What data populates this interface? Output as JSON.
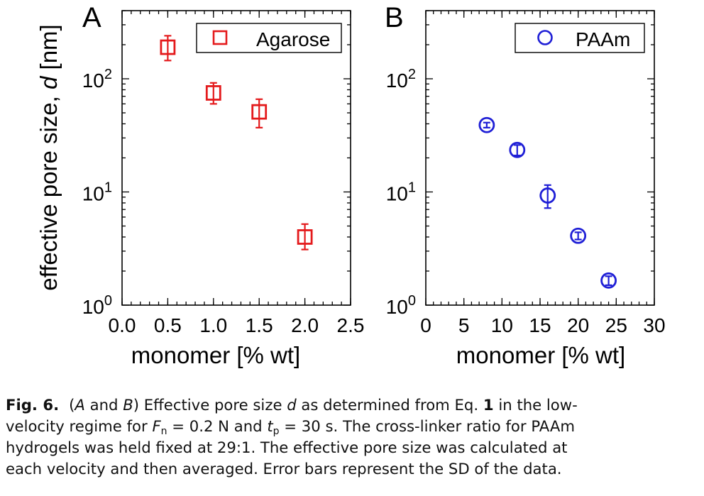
{
  "figure": {
    "y_axis_label": "effective pore size, d [nm]",
    "y_axis_label_prefix": "effective pore size, ",
    "y_axis_label_var": "d",
    "y_axis_label_unit": " [nm]"
  },
  "chart_data": [
    {
      "type": "scatter",
      "panel_label": "A",
      "xlabel": "monomer [% wt]",
      "ylabel": "effective pore size, d [nm]",
      "y_scale": "log",
      "xlim": [
        0,
        2.5
      ],
      "ylim": [
        1,
        400
      ],
      "x_ticks": [
        "0.0",
        "0.5",
        "1.0",
        "1.5",
        "2.0",
        "2.5"
      ],
      "x_tick_values": [
        0,
        0.5,
        1.0,
        1.5,
        2.0,
        2.5
      ],
      "y_tick_values": [
        1,
        10,
        100
      ],
      "y_ticks": [
        {
          "base": "10",
          "exp": "0"
        },
        {
          "base": "10",
          "exp": "1"
        },
        {
          "base": "10",
          "exp": "2"
        }
      ],
      "legend_position": "top-right",
      "color": "#e41a1c",
      "series": [
        {
          "name": "Agarose",
          "marker": "square",
          "x": [
            0.5,
            1.0,
            1.5,
            2.0
          ],
          "y": [
            190,
            75,
            51,
            4.0
          ],
          "y_err_low": [
            145,
            60,
            37,
            3.1
          ],
          "y_err_high": [
            240,
            92,
            66,
            5.2
          ]
        }
      ]
    },
    {
      "type": "scatter",
      "panel_label": "B",
      "xlabel": "monomer [% wt]",
      "y_scale": "log",
      "xlim": [
        0,
        30
      ],
      "ylim": [
        1,
        400
      ],
      "x_ticks": [
        "0",
        "5",
        "10",
        "15",
        "20",
        "25",
        "30"
      ],
      "x_tick_values": [
        0,
        5,
        10,
        15,
        20,
        25,
        30
      ],
      "y_tick_values": [
        1,
        10,
        100
      ],
      "y_ticks": [
        {
          "base": "10",
          "exp": "0"
        },
        {
          "base": "10",
          "exp": "1"
        },
        {
          "base": "10",
          "exp": "2"
        }
      ],
      "legend_position": "top-right",
      "color": "#1f1fd6",
      "series": [
        {
          "name": "PAAm",
          "marker": "circle",
          "x": [
            8,
            12,
            16,
            20,
            24
          ],
          "y": [
            39,
            23.5,
            9.3,
            4.1,
            1.65
          ],
          "y_err_low": [
            37,
            21,
            7.2,
            3.8,
            1.5
          ],
          "y_err_high": [
            41,
            26,
            11.5,
            4.4,
            1.8
          ]
        }
      ]
    }
  ],
  "caption": {
    "fig_label": "Fig. 6.",
    "line1": {
      "p1": "(",
      "a": "A",
      "p2": " and ",
      "b": "B",
      "p3": ") Effective pore size ",
      "d": "d",
      "p4": " as determined from Eq. ",
      "eq": "1",
      "p5": " in the low-"
    },
    "line2": {
      "p1": "velocity regime for ",
      "F": "F",
      "Fsub": "n",
      "p2": " = 0.2 N and ",
      "t": "t",
      "tsub": "p",
      "p3": " = 30 s. The cross-linker ratio for PAAm"
    },
    "line3": "hydrogels was held fixed at 29:1. The effective pore size was calculated at",
    "line4": "each velocity and then averaged. Error bars represent the SD of the data."
  }
}
